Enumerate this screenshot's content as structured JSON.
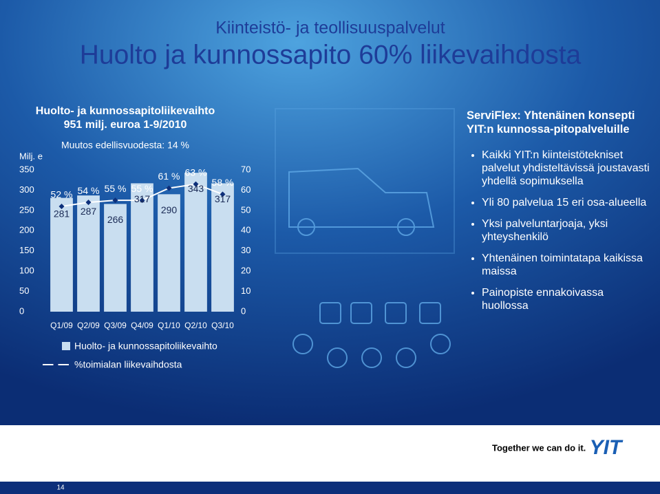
{
  "header": {
    "subtitle": "Kiinteistö- ja teollisuuspalvelut",
    "title": "Huolto ja kunnossapito 60% liikevaihdosta"
  },
  "chart_data": {
    "type": "bar",
    "title": [
      "Huolto- ja kunnossapitoliikevaihto",
      "951 milj. euroa 1-9/2010"
    ],
    "subtitle": "Muutos edellisvuodesta: 14 %",
    "y_label": "Milj. e",
    "categories": [
      "Q1/09",
      "Q2/09",
      "Q3/09",
      "Q4/09",
      "Q1/10",
      "Q2/10",
      "Q3/10"
    ],
    "series": [
      {
        "name": "Huolto- ja kunnossapitoliikevaihto",
        "color": "#c9def0",
        "values": [
          281,
          287,
          266,
          317,
          290,
          343,
          317
        ]
      },
      {
        "name": "%toimialan liikevaihdosta",
        "color": "#ffffff",
        "axis": "y2",
        "values": [
          52,
          54,
          55,
          55,
          61,
          63,
          58
        ],
        "value_labels": [
          "52 %",
          "54 %",
          "55 %",
          "55 %",
          "61 %",
          "63 %",
          "58 %"
        ]
      }
    ],
    "ylim": [
      0,
      350
    ],
    "yticks": [
      0,
      50,
      100,
      150,
      200,
      250,
      300,
      350
    ],
    "y2lim": [
      0,
      70
    ],
    "y2ticks": [
      0,
      10,
      20,
      30,
      40,
      50,
      60,
      70
    ]
  },
  "panel": {
    "title": "ServiFlex: Yhtenäinen konsepti YIT:n kunnossa-pitopalveluille",
    "bullets": [
      "Kaikki YIT:n kiinteistötekniset palvelut yhdisteltävissä joustavasti yhdellä sopimuksella",
      "Yli 80 palvelua 15 eri osa-alueella",
      "Yksi palveluntarjoaja, yksi yhteyshenkilö",
      "Yhtenäinen toimintatapa kaikissa maissa",
      "Painopiste ennakoivassa huollossa"
    ]
  },
  "footer": {
    "slogan": "Together we can do it.",
    "logo": "YIT",
    "page_number": "14"
  }
}
